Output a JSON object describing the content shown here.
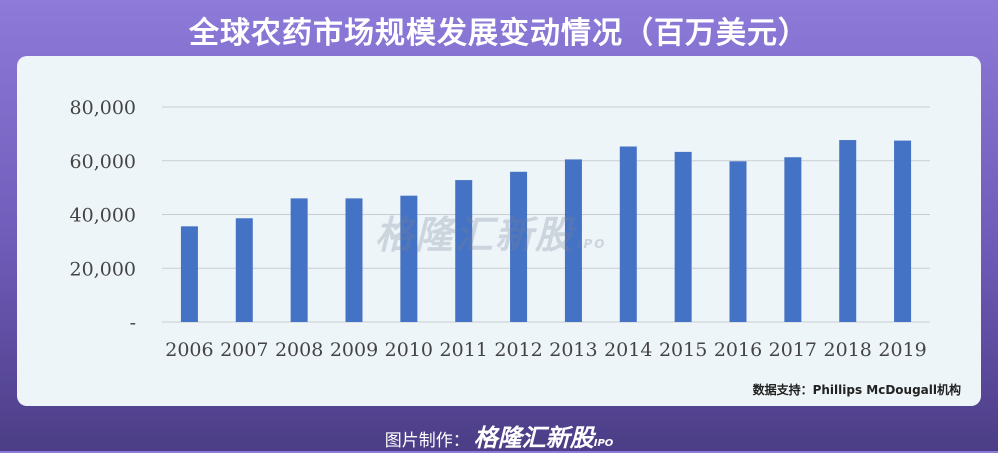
{
  "header": {
    "title": "全球农药市场规模发展变动情况（百万美元）"
  },
  "watermark": {
    "text": "格隆汇新股",
    "sub": "IPO"
  },
  "source": {
    "text": "数据支持：Phillips McDougall机构"
  },
  "footer": {
    "label": "图片制作：",
    "brand": "格隆汇新股",
    "brand_sub": "IPO"
  },
  "colors": {
    "bar": "#4472c4",
    "grid": "#c9cdd3",
    "panel": "#eef5f9"
  },
  "chart_data": {
    "type": "bar",
    "title": "全球农药市场规模发展变动情况（百万美元）",
    "categories": [
      "2006",
      "2007",
      "2008",
      "2009",
      "2010",
      "2011",
      "2012",
      "2013",
      "2014",
      "2015",
      "2016",
      "2017",
      "2018",
      "2019"
    ],
    "values": [
      35600,
      38600,
      46000,
      46000,
      47000,
      52800,
      55900,
      60500,
      65300,
      63300,
      59800,
      61300,
      67700,
      67500
    ],
    "ylim": [
      0,
      80000
    ],
    "yticks": [
      0,
      20000,
      40000,
      60000,
      80000
    ],
    "ytick_labels": [
      "-",
      "20,000",
      "40,000",
      "60,000",
      "80,000"
    ],
    "grid": true,
    "legend": "none"
  }
}
